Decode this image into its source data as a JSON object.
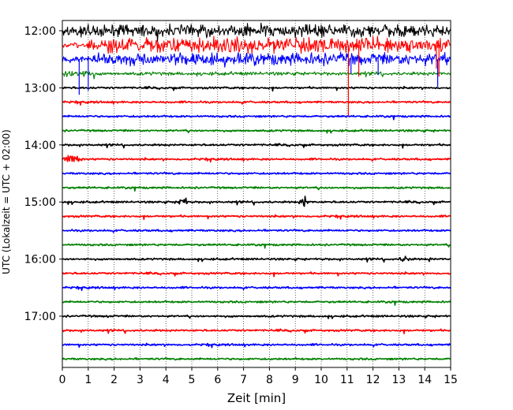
{
  "chart_data": {
    "type": "line",
    "title": "",
    "xlabel": "Zeit  [min]",
    "ylabel": "UTC (Lokalzeit = UTC + 02:00)",
    "xlim": [
      0,
      15
    ],
    "x_ticks": [
      "0",
      "1",
      "2",
      "3",
      "4",
      "5",
      "6",
      "7",
      "8",
      "9",
      "10",
      "11",
      "12",
      "13",
      "14",
      "15"
    ],
    "y_ticks": [
      "12:00",
      "13:00",
      "14:00",
      "15:00",
      "16:00",
      "17:00"
    ],
    "grid": "vertical dotted",
    "colors": {
      "black": "#000000",
      "red": "#ff0000",
      "blue": "#0000ff",
      "green": "#008000"
    },
    "color_cycle": [
      "black",
      "red",
      "blue",
      "green"
    ],
    "series": [
      {
        "start": "12:00",
        "color": "black"
      },
      {
        "start": "12:15",
        "color": "red"
      },
      {
        "start": "12:30",
        "color": "blue"
      },
      {
        "start": "12:45",
        "color": "green"
      },
      {
        "start": "13:00",
        "color": "black"
      },
      {
        "start": "13:15",
        "color": "red"
      },
      {
        "start": "13:30",
        "color": "blue"
      },
      {
        "start": "13:45",
        "color": "green"
      },
      {
        "start": "14:00",
        "color": "black"
      },
      {
        "start": "14:15",
        "color": "red"
      },
      {
        "start": "14:30",
        "color": "blue"
      },
      {
        "start": "14:45",
        "color": "green"
      },
      {
        "start": "15:00",
        "color": "black"
      },
      {
        "start": "15:15",
        "color": "red"
      },
      {
        "start": "15:30",
        "color": "blue"
      },
      {
        "start": "15:45",
        "color": "green"
      },
      {
        "start": "16:00",
        "color": "black"
      },
      {
        "start": "16:15",
        "color": "red"
      },
      {
        "start": "16:30",
        "color": "blue"
      },
      {
        "start": "16:45",
        "color": "green"
      },
      {
        "start": "17:00",
        "color": "black"
      },
      {
        "start": "17:15",
        "color": "red"
      },
      {
        "start": "17:30",
        "color": "blue"
      },
      {
        "start": "17:45",
        "color": "green"
      }
    ],
    "events": [
      {
        "line_start": "14:15",
        "minute": 0.4,
        "kind": "burst"
      },
      {
        "line_start": "15:00",
        "minute": 4.65,
        "kind": "spindle"
      },
      {
        "line_start": "15:00",
        "minute": 9.35,
        "kind": "spindle"
      },
      {
        "line_start": "16:00",
        "minute": 13.25,
        "kind": "blob"
      },
      {
        "line_start": "16:00",
        "minute": 14.2,
        "kind": "small-blob"
      },
      {
        "line_start": "17:00",
        "minute": 1.8,
        "kind": "small-blob"
      }
    ]
  }
}
